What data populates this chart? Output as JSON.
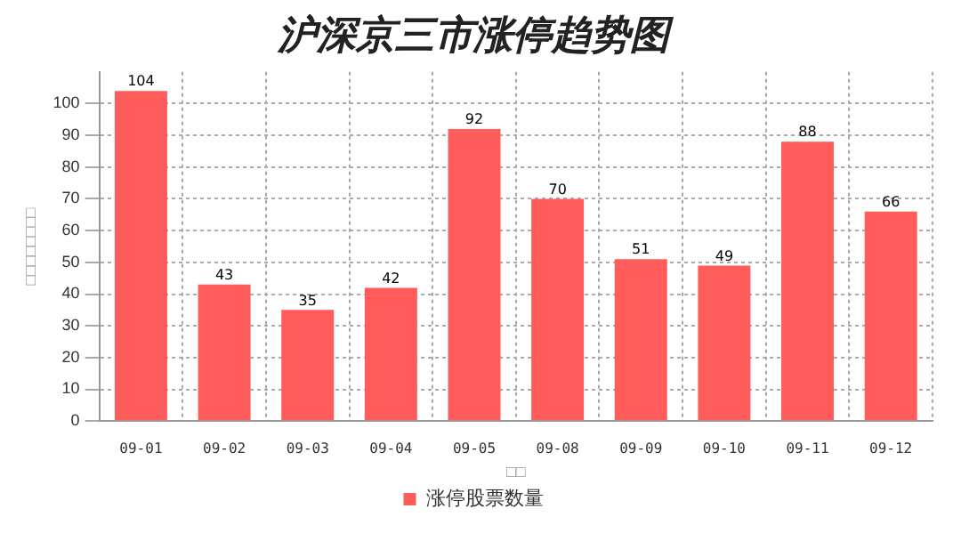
{
  "chart_data": {
    "type": "bar",
    "title": "沪深京三市涨停趋势图",
    "xlabel": "□□",
    "ylabel": "□□□□□□□□",
    "categories": [
      "09-01",
      "09-02",
      "09-03",
      "09-04",
      "09-05",
      "09-08",
      "09-09",
      "09-10",
      "09-11",
      "09-12"
    ],
    "series": [
      {
        "name": "涨停股票数量",
        "color": "#ff5c5c",
        "values": [
          104,
          43,
          35,
          42,
          92,
          70,
          51,
          49,
          88,
          66
        ]
      }
    ],
    "ylim": [
      0,
      110
    ],
    "yticks": [
      0,
      10,
      20,
      30,
      40,
      50,
      60,
      70,
      80,
      90,
      100
    ],
    "grid": true,
    "legend": "bottom",
    "data_labels": true
  }
}
